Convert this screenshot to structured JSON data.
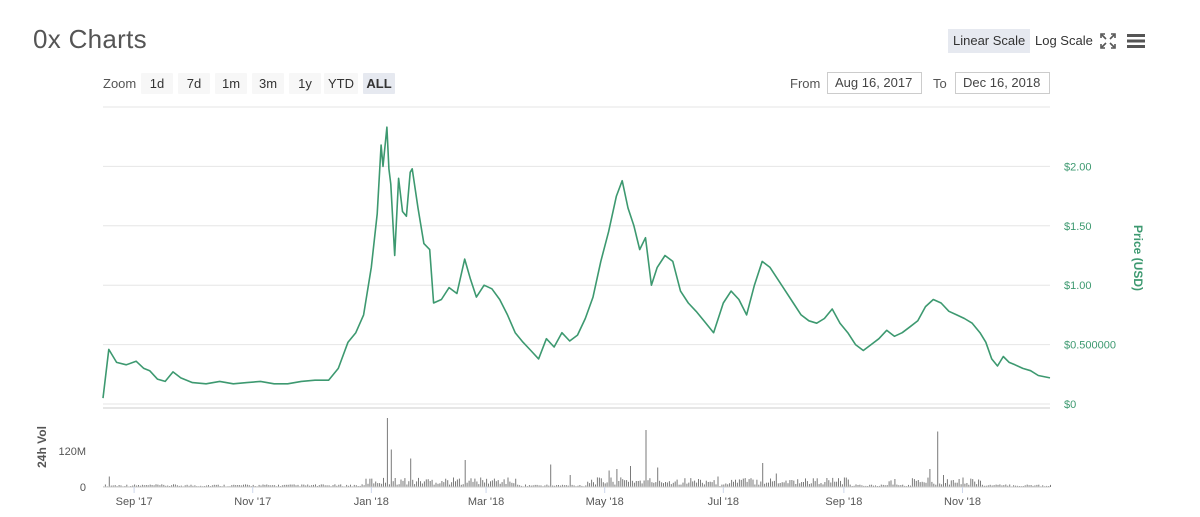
{
  "header": {
    "title": "0x Charts"
  },
  "toolbar": {
    "linear_label": "Linear Scale",
    "log_label": "Log Scale",
    "fullscreen_icon": "expand-icon",
    "menu_icon": "hamburger-menu-icon"
  },
  "zoom": {
    "label": "Zoom",
    "buttons": [
      "1d",
      "7d",
      "1m",
      "3m",
      "1y",
      "YTD",
      "ALL"
    ],
    "active": "ALL"
  },
  "range": {
    "from_label": "From",
    "from": "Aug 16, 2017",
    "to_label": "To",
    "to": "Dec 16, 2018"
  },
  "colors": {
    "price_line": "#3d9970",
    "volume_bar": "#7a7a7a",
    "grid": "#e6e6e6",
    "axis_text": "#3d9970"
  },
  "chart_data": {
    "type": "line",
    "title": "0x Charts",
    "ylabel": "Price (USD)",
    "volume_label": "24h Vol",
    "ylim": [
      0,
      2.5
    ],
    "y_ticks": [
      "$0",
      "$0.500000",
      "$1.00",
      "$1.50",
      "$2.00"
    ],
    "volume_ticks": [
      "0",
      "120M"
    ],
    "volume_ylim": [
      0,
      250000000
    ],
    "x_ticks": [
      "Sep '17",
      "Nov '17",
      "Jan '18",
      "Mar '18",
      "May '18",
      "Jul '18",
      "Sep '18",
      "Nov '18"
    ],
    "x_range": [
      "2017-08-16",
      "2018-12-16"
    ],
    "grid": true,
    "series": [
      {
        "values": [
          [
            "2017-08-16",
            0.05
          ],
          [
            "2017-08-19",
            0.46
          ],
          [
            "2017-08-23",
            0.35
          ],
          [
            "2017-08-28",
            0.33
          ],
          [
            "2017-09-02",
            0.36
          ],
          [
            "2017-09-06",
            0.3
          ],
          [
            "2017-09-09",
            0.28
          ],
          [
            "2017-09-13",
            0.21
          ],
          [
            "2017-09-17",
            0.19
          ],
          [
            "2017-09-21",
            0.27
          ],
          [
            "2017-09-25",
            0.22
          ],
          [
            "2017-10-01",
            0.18
          ],
          [
            "2017-10-08",
            0.17
          ],
          [
            "2017-10-15",
            0.19
          ],
          [
            "2017-10-22",
            0.17
          ],
          [
            "2017-10-29",
            0.18
          ],
          [
            "2017-11-05",
            0.19
          ],
          [
            "2017-11-12",
            0.17
          ],
          [
            "2017-11-19",
            0.17
          ],
          [
            "2017-11-26",
            0.19
          ],
          [
            "2017-12-03",
            0.2
          ],
          [
            "2017-12-10",
            0.2
          ],
          [
            "2017-12-15",
            0.3
          ],
          [
            "2017-12-20",
            0.52
          ],
          [
            "2017-12-24",
            0.6
          ],
          [
            "2017-12-28",
            0.75
          ],
          [
            "2018-01-01",
            1.15
          ],
          [
            "2018-01-04",
            1.6
          ],
          [
            "2018-01-06",
            2.18
          ],
          [
            "2018-01-07",
            2.0
          ],
          [
            "2018-01-09",
            2.33
          ],
          [
            "2018-01-10",
            1.98
          ],
          [
            "2018-01-11",
            1.85
          ],
          [
            "2018-01-13",
            1.25
          ],
          [
            "2018-01-15",
            1.9
          ],
          [
            "2018-01-17",
            1.62
          ],
          [
            "2018-01-19",
            1.58
          ],
          [
            "2018-01-21",
            1.95
          ],
          [
            "2018-01-22",
            1.98
          ],
          [
            "2018-01-25",
            1.65
          ],
          [
            "2018-01-28",
            1.35
          ],
          [
            "2018-01-31",
            1.3
          ],
          [
            "2018-02-02",
            0.85
          ],
          [
            "2018-02-06",
            0.88
          ],
          [
            "2018-02-10",
            0.98
          ],
          [
            "2018-02-14",
            0.93
          ],
          [
            "2018-02-18",
            1.22
          ],
          [
            "2018-02-21",
            1.05
          ],
          [
            "2018-02-24",
            0.9
          ],
          [
            "2018-02-28",
            1.0
          ],
          [
            "2018-03-04",
            0.97
          ],
          [
            "2018-03-08",
            0.88
          ],
          [
            "2018-03-12",
            0.75
          ],
          [
            "2018-03-16",
            0.6
          ],
          [
            "2018-03-20",
            0.52
          ],
          [
            "2018-03-24",
            0.45
          ],
          [
            "2018-03-28",
            0.38
          ],
          [
            "2018-04-01",
            0.55
          ],
          [
            "2018-04-05",
            0.48
          ],
          [
            "2018-04-09",
            0.6
          ],
          [
            "2018-04-13",
            0.53
          ],
          [
            "2018-04-17",
            0.58
          ],
          [
            "2018-04-21",
            0.72
          ],
          [
            "2018-04-25",
            0.9
          ],
          [
            "2018-04-29",
            1.2
          ],
          [
            "2018-05-03",
            1.45
          ],
          [
            "2018-05-07",
            1.75
          ],
          [
            "2018-05-10",
            1.88
          ],
          [
            "2018-05-13",
            1.65
          ],
          [
            "2018-05-16",
            1.5
          ],
          [
            "2018-05-19",
            1.3
          ],
          [
            "2018-05-22",
            1.4
          ],
          [
            "2018-05-25",
            1.0
          ],
          [
            "2018-05-28",
            1.15
          ],
          [
            "2018-06-01",
            1.25
          ],
          [
            "2018-06-05",
            1.2
          ],
          [
            "2018-06-09",
            0.95
          ],
          [
            "2018-06-13",
            0.85
          ],
          [
            "2018-06-17",
            0.78
          ],
          [
            "2018-06-21",
            0.7
          ],
          [
            "2018-06-26",
            0.6
          ],
          [
            "2018-07-01",
            0.85
          ],
          [
            "2018-07-05",
            0.95
          ],
          [
            "2018-07-09",
            0.88
          ],
          [
            "2018-07-13",
            0.75
          ],
          [
            "2018-07-17",
            1.0
          ],
          [
            "2018-07-21",
            1.2
          ],
          [
            "2018-07-25",
            1.15
          ],
          [
            "2018-07-29",
            1.05
          ],
          [
            "2018-08-02",
            0.95
          ],
          [
            "2018-08-06",
            0.85
          ],
          [
            "2018-08-10",
            0.75
          ],
          [
            "2018-08-14",
            0.7
          ],
          [
            "2018-08-18",
            0.68
          ],
          [
            "2018-08-22",
            0.72
          ],
          [
            "2018-08-26",
            0.8
          ],
          [
            "2018-08-30",
            0.68
          ],
          [
            "2018-09-03",
            0.6
          ],
          [
            "2018-09-07",
            0.5
          ],
          [
            "2018-09-11",
            0.45
          ],
          [
            "2018-09-15",
            0.5
          ],
          [
            "2018-09-19",
            0.55
          ],
          [
            "2018-09-23",
            0.62
          ],
          [
            "2018-09-27",
            0.57
          ],
          [
            "2018-10-01",
            0.6
          ],
          [
            "2018-10-05",
            0.65
          ],
          [
            "2018-10-09",
            0.7
          ],
          [
            "2018-10-13",
            0.82
          ],
          [
            "2018-10-17",
            0.88
          ],
          [
            "2018-10-21",
            0.85
          ],
          [
            "2018-10-25",
            0.78
          ],
          [
            "2018-10-29",
            0.75
          ],
          [
            "2018-11-02",
            0.72
          ],
          [
            "2018-11-06",
            0.68
          ],
          [
            "2018-11-10",
            0.6
          ],
          [
            "2018-11-13",
            0.52
          ],
          [
            "2018-11-16",
            0.38
          ],
          [
            "2018-11-19",
            0.32
          ],
          [
            "2018-11-22",
            0.4
          ],
          [
            "2018-11-25",
            0.35
          ],
          [
            "2018-11-28",
            0.33
          ],
          [
            "2018-12-02",
            0.3
          ],
          [
            "2018-12-06",
            0.28
          ],
          [
            "2018-12-10",
            0.24
          ],
          [
            "2018-12-16",
            0.22
          ]
        ]
      }
    ],
    "volume_spikes": [
      [
        "2017-08-19",
        35000000
      ],
      [
        "2018-01-09",
        230000000
      ],
      [
        "2018-01-11",
        125000000
      ],
      [
        "2018-01-21",
        95000000
      ],
      [
        "2018-02-18",
        90000000
      ],
      [
        "2018-04-03",
        75000000
      ],
      [
        "2018-04-13",
        40000000
      ],
      [
        "2018-05-03",
        55000000
      ],
      [
        "2018-05-07",
        60000000
      ],
      [
        "2018-05-14",
        70000000
      ],
      [
        "2018-05-22",
        190000000
      ],
      [
        "2018-05-28",
        65000000
      ],
      [
        "2018-06-28",
        35000000
      ],
      [
        "2018-07-21",
        80000000
      ],
      [
        "2018-07-28",
        45000000
      ],
      [
        "2018-10-15",
        60000000
      ],
      [
        "2018-10-19",
        185000000
      ],
      [
        "2018-10-22",
        40000000
      ]
    ]
  }
}
